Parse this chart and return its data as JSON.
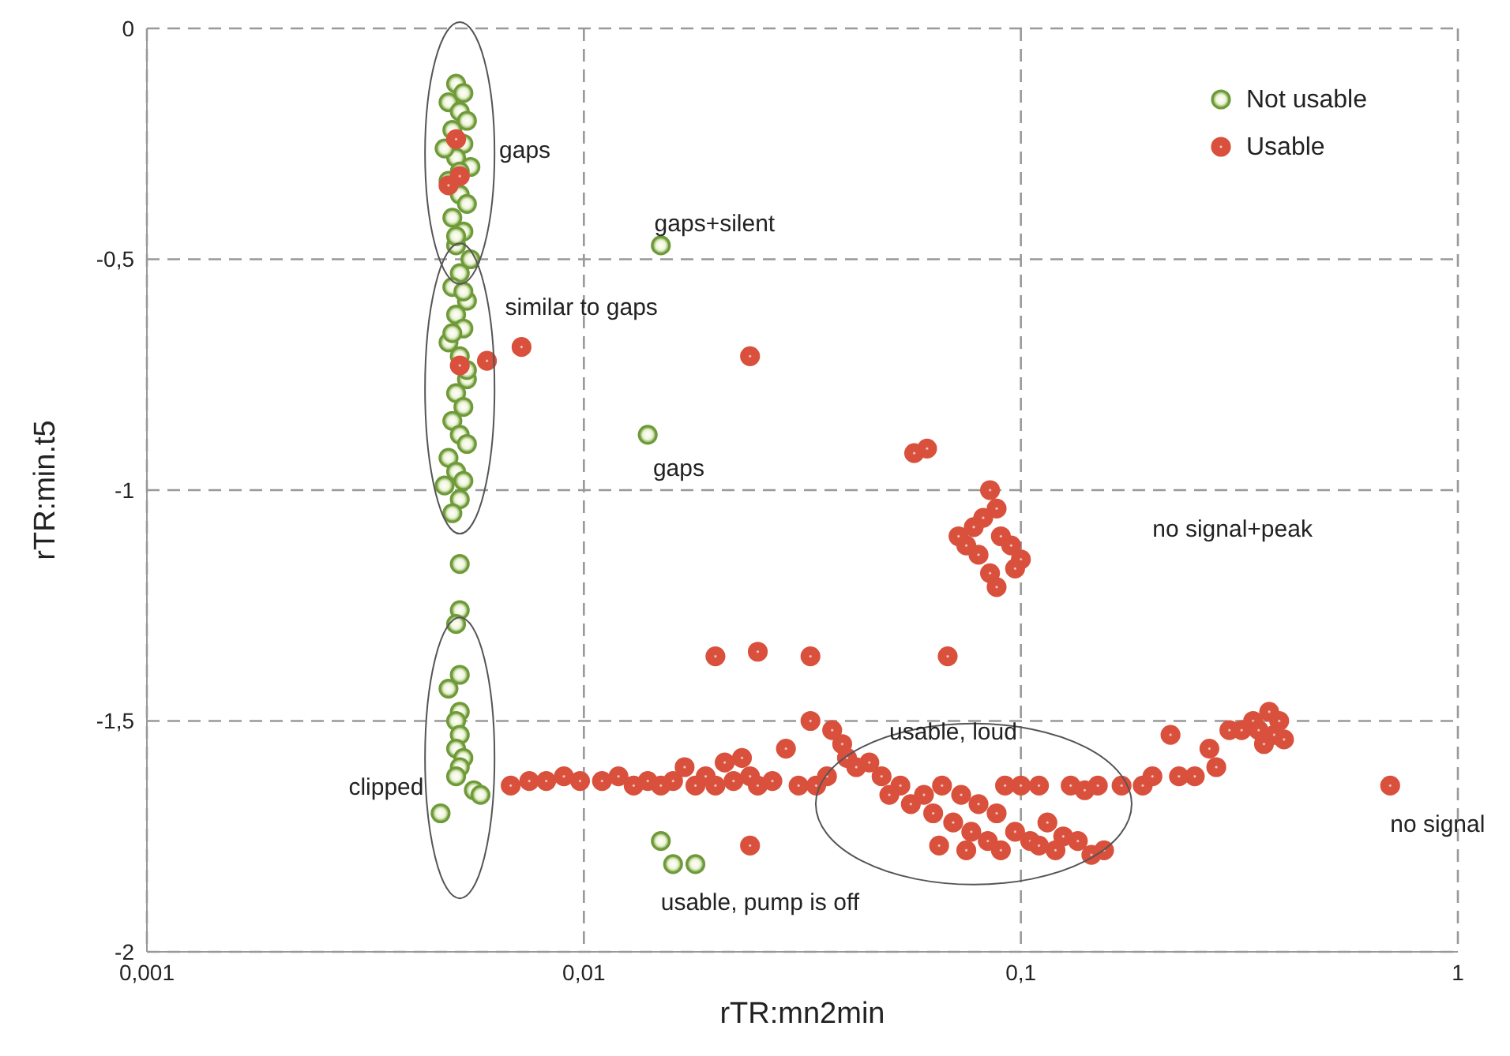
{
  "chart_data": {
    "type": "scatter",
    "xlabel": "rTR:mn2min",
    "ylabel": "rTR:min.t5",
    "log": "x",
    "xlim": [
      0.001,
      1
    ],
    "xticks": [
      {
        "value": 0.001,
        "label": "0,001"
      },
      {
        "value": 0.01,
        "label": "0,01"
      },
      {
        "value": 0.1,
        "label": "0,1"
      },
      {
        "value": 1,
        "label": "1"
      }
    ],
    "ylim": [
      -2,
      0
    ],
    "yticks": [
      {
        "value": -2,
        "label": "-2"
      },
      {
        "value": -1.5,
        "label": "-1,5"
      },
      {
        "value": -1,
        "label": "-1"
      },
      {
        "value": -0.5,
        "label": "-0,5"
      },
      {
        "value": 0,
        "label": "0"
      }
    ],
    "grid": true,
    "legend": "top right",
    "marker": "circle",
    "annotations": [
      "gaps",
      "gaps+silent",
      "similar to gaps",
      "gaps",
      "no signal+peak",
      "usable, loud",
      "clipped",
      "usable, pump is off",
      "no signal"
    ],
    "series": [
      {
        "name": "Not usable",
        "color": "#6e9a38",
        "x": [
          0.0051,
          0.0053,
          0.0049,
          0.0052,
          0.0054,
          0.005,
          0.0053,
          0.0051,
          0.0055,
          0.0049,
          0.0052,
          0.0054,
          0.005,
          0.0053,
          0.0051,
          0.0055,
          0.0052,
          0.005,
          0.0054,
          0.0051,
          0.0053,
          0.0049,
          0.0052,
          0.0054,
          0.0051,
          0.0053,
          0.005,
          0.0052,
          0.0054,
          0.0049,
          0.0051,
          0.0053,
          0.0052,
          0.0048,
          0.0054,
          0.005,
          0.0053,
          0.0051,
          0.0048,
          0.0052,
          0.005,
          0.0052,
          0.0052,
          0.0051,
          0.0052,
          0.0049,
          0.0052,
          0.0051,
          0.0052,
          0.0051,
          0.0053,
          0.0052,
          0.0051,
          0.0056,
          0.0058,
          0.0047,
          0.015,
          0.014,
          0.015,
          0.016,
          0.018
        ],
        "values": [
          -0.12,
          -0.14,
          -0.16,
          -0.18,
          -0.2,
          -0.22,
          -0.25,
          -0.28,
          -0.3,
          -0.33,
          -0.36,
          -0.38,
          -0.41,
          -0.44,
          -0.47,
          -0.5,
          -0.53,
          -0.56,
          -0.59,
          -0.62,
          -0.65,
          -0.68,
          -0.71,
          -0.76,
          -0.79,
          -0.82,
          -0.85,
          -0.88,
          -0.9,
          -0.93,
          -0.96,
          -0.98,
          -1.02,
          -0.99,
          -0.74,
          -0.66,
          -0.57,
          -0.45,
          -0.26,
          -0.31,
          -1.05,
          -1.16,
          -1.26,
          -1.29,
          -1.4,
          -1.43,
          -1.48,
          -1.5,
          -1.53,
          -1.56,
          -1.58,
          -1.6,
          -1.62,
          -1.65,
          -1.66,
          -1.7,
          -0.47,
          -0.88,
          -1.76,
          -1.81,
          -1.81
        ]
      },
      {
        "name": "Usable",
        "color": "#d9503c",
        "x": [
          0.0051,
          0.0049,
          0.0052,
          0.0052,
          0.006,
          0.0072,
          0.024,
          0.057,
          0.061,
          0.085,
          0.088,
          0.082,
          0.078,
          0.09,
          0.075,
          0.095,
          0.08,
          0.1,
          0.085,
          0.088,
          0.097,
          0.072,
          0.02,
          0.025,
          0.033,
          0.068,
          0.0068,
          0.0075,
          0.0082,
          0.009,
          0.0098,
          0.011,
          0.012,
          0.013,
          0.014,
          0.015,
          0.016,
          0.017,
          0.018,
          0.019,
          0.02,
          0.021,
          0.022,
          0.023,
          0.024,
          0.025,
          0.027,
          0.029,
          0.031,
          0.033,
          0.034,
          0.036,
          0.037,
          0.039,
          0.04,
          0.042,
          0.045,
          0.048,
          0.05,
          0.053,
          0.056,
          0.06,
          0.063,
          0.066,
          0.07,
          0.073,
          0.077,
          0.08,
          0.084,
          0.088,
          0.092,
          0.097,
          0.1,
          0.105,
          0.11,
          0.115,
          0.12,
          0.13,
          0.135,
          0.14,
          0.145,
          0.15,
          0.155,
          0.065,
          0.075,
          0.09,
          0.11,
          0.125,
          0.17,
          0.19,
          0.2,
          0.22,
          0.23,
          0.25,
          0.27,
          0.28,
          0.3,
          0.32,
          0.34,
          0.35,
          0.37,
          0.38,
          0.39,
          0.4,
          0.36,
          0.7,
          0.024
        ],
        "values": [
          -0.24,
          -0.34,
          -0.32,
          -0.73,
          -0.72,
          -0.69,
          -0.71,
          -0.92,
          -0.91,
          -1.0,
          -1.04,
          -1.06,
          -1.08,
          -1.1,
          -1.12,
          -1.12,
          -1.14,
          -1.15,
          -1.18,
          -1.21,
          -1.17,
          -1.1,
          -1.36,
          -1.35,
          -1.36,
          -1.36,
          -1.64,
          -1.63,
          -1.63,
          -1.62,
          -1.63,
          -1.63,
          -1.62,
          -1.64,
          -1.63,
          -1.64,
          -1.63,
          -1.6,
          -1.64,
          -1.62,
          -1.64,
          -1.59,
          -1.63,
          -1.58,
          -1.62,
          -1.64,
          -1.63,
          -1.56,
          -1.64,
          -1.5,
          -1.64,
          -1.62,
          -1.52,
          -1.55,
          -1.58,
          -1.6,
          -1.59,
          -1.62,
          -1.66,
          -1.64,
          -1.68,
          -1.66,
          -1.7,
          -1.64,
          -1.72,
          -1.66,
          -1.74,
          -1.68,
          -1.76,
          -1.7,
          -1.64,
          -1.74,
          -1.64,
          -1.76,
          -1.64,
          -1.72,
          -1.78,
          -1.64,
          -1.76,
          -1.65,
          -1.79,
          -1.64,
          -1.78,
          -1.77,
          -1.78,
          -1.78,
          -1.77,
          -1.75,
          -1.64,
          -1.64,
          -1.62,
          -1.53,
          -1.62,
          -1.62,
          -1.56,
          -1.6,
          -1.52,
          -1.52,
          -1.5,
          -1.52,
          -1.48,
          -1.53,
          -1.5,
          -1.54,
          -1.55,
          -1.64,
          -1.77
        ]
      }
    ]
  }
}
